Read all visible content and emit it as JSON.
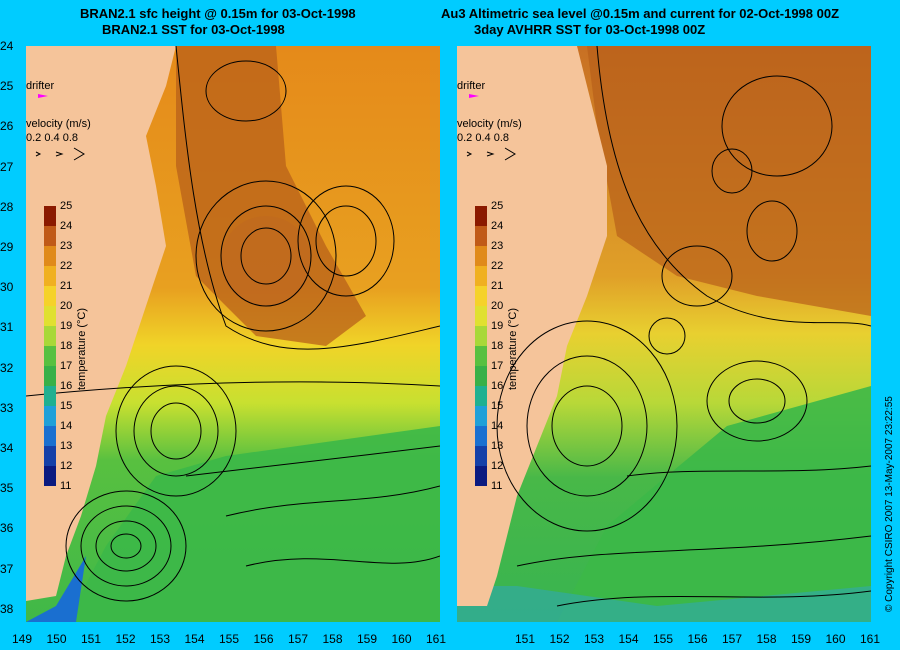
{
  "titles": {
    "left_line1": "BRAN2.1 sfc height @ 0.15m for 03-Oct-1998",
    "left_line2": "BRAN2.1 SST for 03-Oct-1998",
    "right_line1": "Au3 Altimetric sea level  @0.15m and current for 02-Oct-1998 00Z",
    "right_line2": "3day AVHRR SST for 03-Oct-1998 00Z"
  },
  "y_axis_labels": [
    "24",
    "25",
    "26",
    "27",
    "28",
    "29",
    "30",
    "31",
    "32",
    "33",
    "34",
    "35",
    "36",
    "37",
    "38"
  ],
  "x_axis_labels": [
    "149",
    "150",
    "151",
    "152",
    "153",
    "154",
    "155",
    "156",
    "157",
    "158",
    "159",
    "160",
    "161"
  ],
  "x_axis_right_labels": [
    "151",
    "152",
    "153",
    "154",
    "155",
    "156",
    "157",
    "158",
    "159",
    "160",
    "161"
  ],
  "overlay": {
    "drifter_label": "drifter",
    "velocity_label": "velocity (m/s)",
    "velocity_scale": "0.2 0.4 0.8"
  },
  "colorbar": {
    "title": "temperature (°C)",
    "ticks": [
      "25",
      "24",
      "23",
      "22",
      "21",
      "20",
      "19",
      "18",
      "17",
      "16",
      "15",
      "14",
      "13",
      "12",
      "11"
    ]
  },
  "copyright": "© Copyright CSIRO 2007   13-May-2007 23:22:55",
  "colors": {
    "background": "#00ccff",
    "land": "#f5c49a",
    "drifter": "#ff00ff"
  },
  "icons": [
    "drifter-marker-icon",
    "velocity-arrow-icon"
  ]
}
